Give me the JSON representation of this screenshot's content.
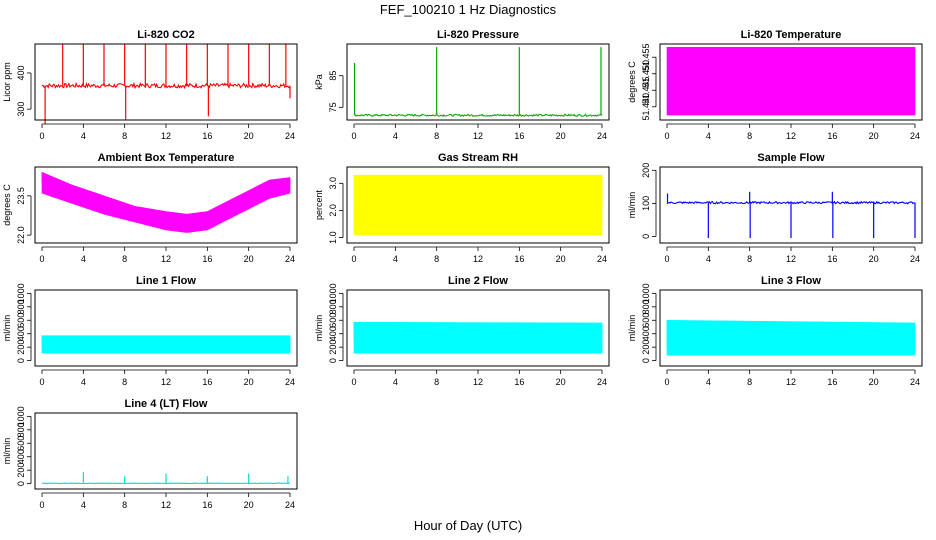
{
  "figure": {
    "title": "FEF_100210  1 Hz Diagnostics",
    "xlabel": "Hour of Day (UTC)"
  },
  "chart_data": [
    {
      "id": "co2",
      "type": "line",
      "title": "Li-820 CO2",
      "ylabel": "Licor ppm",
      "color": "#ff0000",
      "xlim": [
        0,
        24
      ],
      "ylim": [
        270,
        480
      ],
      "xticks": [
        0,
        4,
        8,
        12,
        16,
        20,
        24
      ],
      "yticks": [
        300,
        400
      ],
      "baseline": 365,
      "noise": 6,
      "spikes": [
        {
          "x": 0.3,
          "y": 260
        },
        {
          "x": 2,
          "y": 480
        },
        {
          "x": 4,
          "y": 480
        },
        {
          "x": 6,
          "y": 480
        },
        {
          "x": 8,
          "y": 480
        },
        {
          "x": 8.1,
          "y": 270
        },
        {
          "x": 10,
          "y": 480
        },
        {
          "x": 12,
          "y": 480
        },
        {
          "x": 14,
          "y": 480
        },
        {
          "x": 16,
          "y": 480
        },
        {
          "x": 16.1,
          "y": 280
        },
        {
          "x": 18,
          "y": 480
        },
        {
          "x": 20,
          "y": 480
        },
        {
          "x": 22,
          "y": 480
        },
        {
          "x": 23.6,
          "y": 480
        },
        {
          "x": 24,
          "y": 330
        }
      ]
    },
    {
      "id": "pressure",
      "type": "line",
      "title": "Li-820 Pressure",
      "ylabel": "kPa",
      "color": "#00aa00",
      "xlim": [
        0,
        24
      ],
      "ylim": [
        71,
        95
      ],
      "xticks": [
        0,
        4,
        8,
        12,
        16,
        20,
        24
      ],
      "yticks": [
        75,
        85
      ],
      "baseline": 72.5,
      "noise": 0.3,
      "spikes": [
        {
          "x": 0.05,
          "y": 89
        },
        {
          "x": 8,
          "y": 94
        },
        {
          "x": 16,
          "y": 94
        },
        {
          "x": 23.9,
          "y": 94
        }
      ]
    },
    {
      "id": "li820-temp",
      "type": "area",
      "title": "Li-820 Temperature",
      "ylabel": "degrees C",
      "color": "#ff00ff",
      "xlim": [
        0,
        24
      ],
      "ylim": [
        51.436,
        51.459
      ],
      "xticks": [
        0,
        4,
        8,
        12,
        16,
        20,
        24
      ],
      "yticks": [
        51.44,
        51.445,
        51.45,
        51.455
      ],
      "band": [
        {
          "x": 0,
          "low": 51.4375,
          "high": 51.458
        },
        {
          "x": 24,
          "low": 51.4375,
          "high": 51.458
        }
      ]
    },
    {
      "id": "ambient-temp",
      "type": "area",
      "title": "Ambient Box Temperature",
      "ylabel": "degrees C",
      "color": "#ff00ff",
      "xlim": [
        0,
        24
      ],
      "ylim": [
        21.7,
        24.6
      ],
      "xticks": [
        0,
        4,
        8,
        12,
        16,
        20,
        24
      ],
      "yticks": [
        22.0,
        23.5
      ],
      "band": [
        {
          "x": 0,
          "low": 23.6,
          "high": 24.4
        },
        {
          "x": 3,
          "low": 23.2,
          "high": 23.9
        },
        {
          "x": 6,
          "low": 22.8,
          "high": 23.5
        },
        {
          "x": 9,
          "low": 22.5,
          "high": 23.1
        },
        {
          "x": 12,
          "low": 22.2,
          "high": 22.9
        },
        {
          "x": 14,
          "low": 22.1,
          "high": 22.8
        },
        {
          "x": 16,
          "low": 22.2,
          "high": 22.9
        },
        {
          "x": 18,
          "low": 22.6,
          "high": 23.3
        },
        {
          "x": 20,
          "low": 23.0,
          "high": 23.7
        },
        {
          "x": 22,
          "low": 23.4,
          "high": 24.1
        },
        {
          "x": 24,
          "low": 23.6,
          "high": 24.2
        }
      ]
    },
    {
      "id": "rh",
      "type": "area",
      "title": "Gas Stream RH",
      "ylabel": "percent",
      "color": "#ffff00",
      "xlim": [
        0,
        24
      ],
      "ylim": [
        0.8,
        3.6
      ],
      "xticks": [
        0,
        4,
        8,
        12,
        16,
        20,
        24
      ],
      "yticks": [
        1.0,
        2.0,
        3.0
      ],
      "band": [
        {
          "x": 0,
          "low": 1.1,
          "high": 3.3
        },
        {
          "x": 24,
          "low": 1.1,
          "high": 3.3
        }
      ]
    },
    {
      "id": "sample-flow",
      "type": "line",
      "title": "Sample Flow",
      "ylabel": "ml/min",
      "color": "#0000ff",
      "xlim": [
        0,
        24
      ],
      "ylim": [
        -20,
        210
      ],
      "xticks": [
        0,
        4,
        8,
        12,
        16,
        20,
        24
      ],
      "yticks": [
        0,
        100,
        200
      ],
      "baseline": 102,
      "noise": 3,
      "spikes": [
        {
          "x": 0.05,
          "y": 130
        },
        {
          "x": 4,
          "y": -5
        },
        {
          "x": 8,
          "y": 135
        },
        {
          "x": 8.05,
          "y": -5
        },
        {
          "x": 12,
          "y": -5
        },
        {
          "x": 16,
          "y": 135
        },
        {
          "x": 16.05,
          "y": -5
        },
        {
          "x": 20,
          "y": -5
        },
        {
          "x": 24,
          "y": -5
        }
      ]
    },
    {
      "id": "line1",
      "type": "area",
      "title": "Line 1 Flow",
      "ylabel": "ml/min",
      "color": "#00ffff",
      "xlim": [
        0,
        24
      ],
      "ylim": [
        -80,
        1050
      ],
      "xticks": [
        0,
        4,
        8,
        12,
        16,
        20,
        24
      ],
      "yticks": [
        0,
        200,
        400,
        600,
        800,
        1000
      ],
      "band": [
        {
          "x": 0,
          "low": 110,
          "high": 370
        },
        {
          "x": 24,
          "low": 110,
          "high": 370
        }
      ]
    },
    {
      "id": "line2",
      "type": "area",
      "title": "Line 2 Flow",
      "ylabel": "ml/min",
      "color": "#00ffff",
      "xlim": [
        0,
        24
      ],
      "ylim": [
        -80,
        1050
      ],
      "xticks": [
        0,
        4,
        8,
        12,
        16,
        20,
        24
      ],
      "yticks": [
        0,
        200,
        400,
        600,
        800,
        1000
      ],
      "band": [
        {
          "x": 0,
          "low": 110,
          "high": 570
        },
        {
          "x": 24,
          "low": 110,
          "high": 560
        }
      ]
    },
    {
      "id": "line3",
      "type": "area",
      "title": "Line 3 Flow",
      "ylabel": "ml/min",
      "color": "#00ffff",
      "xlim": [
        0,
        24
      ],
      "ylim": [
        -80,
        1050
      ],
      "xticks": [
        0,
        4,
        8,
        12,
        16,
        20,
        24
      ],
      "yticks": [
        0,
        200,
        400,
        600,
        800,
        1000
      ],
      "band": [
        {
          "x": 0,
          "low": 80,
          "high": 600
        },
        {
          "x": 24,
          "low": 80,
          "high": 560
        }
      ]
    },
    {
      "id": "line4",
      "type": "line",
      "title": "Line 4 (LT) Flow",
      "ylabel": "ml/min",
      "color": "#00dddd",
      "xlim": [
        0,
        24
      ],
      "ylim": [
        -80,
        1050
      ],
      "xticks": [
        0,
        4,
        8,
        12,
        16,
        20,
        24
      ],
      "yticks": [
        0,
        200,
        400,
        600,
        800,
        1000
      ],
      "baseline": 5,
      "noise": 3,
      "spikes": [
        {
          "x": 4,
          "y": 170
        },
        {
          "x": 8,
          "y": 110
        },
        {
          "x": 12,
          "y": 150
        },
        {
          "x": 16,
          "y": 110
        },
        {
          "x": 20,
          "y": 150
        },
        {
          "x": 23.8,
          "y": 110
        }
      ]
    }
  ]
}
